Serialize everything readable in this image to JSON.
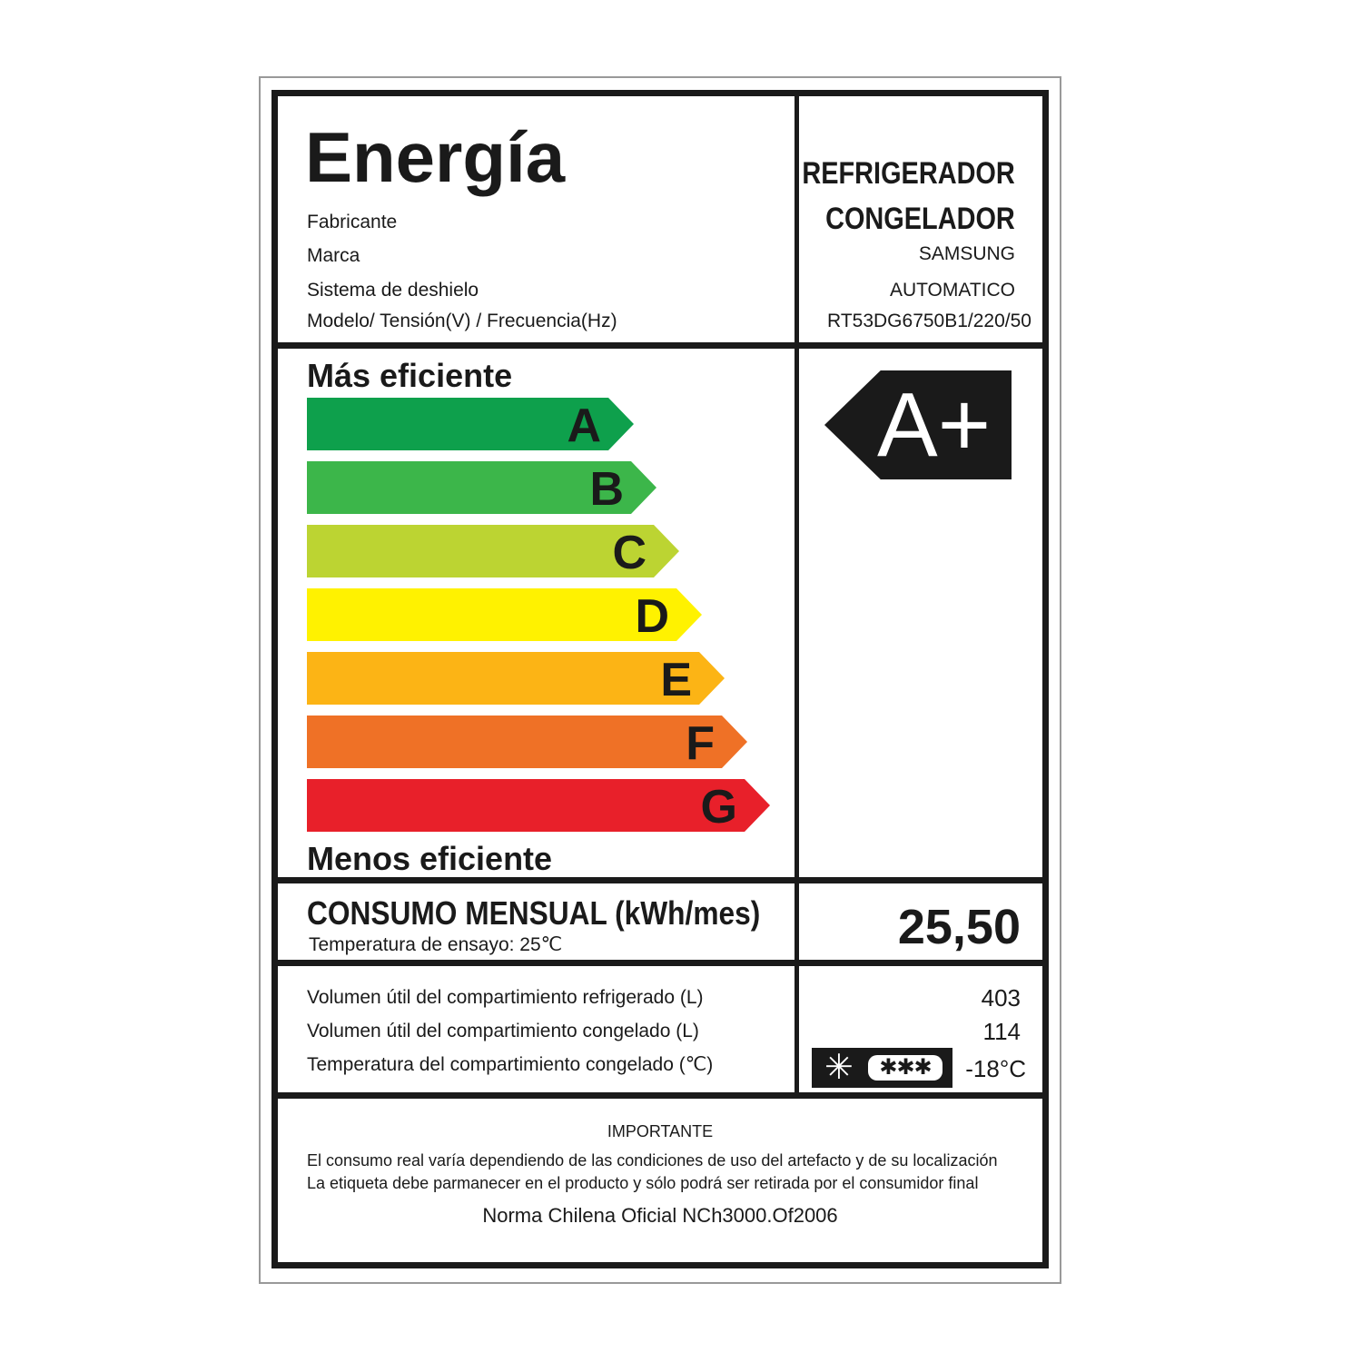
{
  "header": {
    "title": "Energía",
    "product_type_line1": "REFRIGERADOR",
    "product_type_line2": "CONGELADOR",
    "fields": [
      {
        "label": "Fabricante",
        "value": ""
      },
      {
        "label": "Marca",
        "value": "SAMSUNG"
      },
      {
        "label": "Sistema de deshielo",
        "value": "AUTOMATICO"
      },
      {
        "label": "Modelo/ Tensión(V) / Frecuencia(Hz)",
        "value": "RT53DG6750B1/220/50"
      }
    ]
  },
  "scale": {
    "top_label": "Más eficiente",
    "bottom_label": "Menos eficiente",
    "classes": [
      {
        "letter": "A",
        "color": "#0ea04c"
      },
      {
        "letter": "B",
        "color": "#3cb64a"
      },
      {
        "letter": "C",
        "color": "#bcd432"
      },
      {
        "letter": "D",
        "color": "#fff200"
      },
      {
        "letter": "E",
        "color": "#fcb415"
      },
      {
        "letter": "F",
        "color": "#ef7126"
      },
      {
        "letter": "G",
        "color": "#e8202a"
      }
    ],
    "rating": "A+"
  },
  "consumption": {
    "title": "CONSUMO MENSUAL (kWh/mes)",
    "subtitle": "Temperatura de ensayo: 25℃",
    "value": "25,50"
  },
  "specs": [
    {
      "label": "Volumen útil del compartimiento refrigerado (L)",
      "value": "403"
    },
    {
      "label": "Volumen útil del compartimiento congelado (L)",
      "value": "114"
    },
    {
      "label": "Temperatura del compartimiento congelado (℃)",
      "value": "-18°C",
      "icon": "four-star-freezer-icon"
    }
  ],
  "footer": {
    "heading": "IMPORTANTE",
    "line1": "El consumo real varía dependiendo de las condiciones de uso del artefacto y de su localización",
    "line2": "La etiqueta debe parmanecer en el producto y sólo podrá ser retirada por el consumidor final",
    "norm": "Norma Chilena Oficial NCh3000.Of2006"
  }
}
